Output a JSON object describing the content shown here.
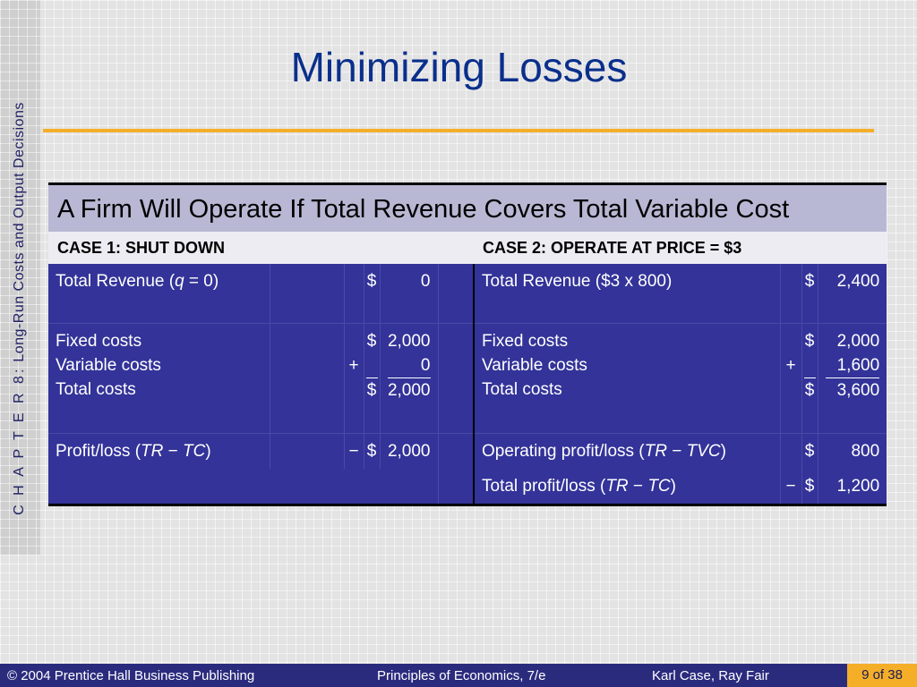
{
  "sidebar": {
    "chapter": "C H A P T E R  8:",
    "topic": "Long-Run Costs and Output Decisions"
  },
  "title": "Minimizing Losses",
  "table": {
    "header": "A Firm Will Operate If Total Revenue Covers Total Variable Cost",
    "case1": {
      "title": "CASE 1:  SHUT DOWN",
      "tr_label_pre": "Total Revenue (",
      "tr_label_var": "q",
      "tr_label_post": " = 0)",
      "tr_dollar": "$",
      "tr_value": "0",
      "fixed_label": "Fixed costs",
      "variable_label": "Variable costs",
      "total_label": "Total costs",
      "fixed_dollar": "$",
      "fixed_value": "2,000",
      "variable_sign": "+",
      "variable_value": "0",
      "total_dollar": "$",
      "total_value": "2,000",
      "profit_pre": "Profit/loss (",
      "profit_tr": "TR",
      "profit_minus": " − ",
      "profit_tc": "TC",
      "profit_post": ")",
      "profit_sign": "−",
      "profit_dollar": "$",
      "profit_value": "2,000"
    },
    "case2": {
      "title": "CASE 2:  OPERATE AT PRICE = $3",
      "tr_label": "Total Revenue ($3 x 800)",
      "tr_dollar": "$",
      "tr_value": "2,400",
      "fixed_label": "Fixed costs",
      "variable_label": "Variable costs",
      "total_label": "Total costs",
      "fixed_dollar": "$",
      "fixed_value": "2,000",
      "variable_sign": "+",
      "variable_value": "1,600",
      "total_dollar": "$",
      "total_value": "3,600",
      "op_pre": "Operating profit/loss (",
      "op_tr": "TR",
      "op_minus": " − ",
      "op_tvc": "TVC",
      "op_post": ")",
      "op_dollar": "$",
      "op_value": "800",
      "total_pre": "Total profit/loss (",
      "total_tr": "TR",
      "total_minus": " − ",
      "total_tc": "TC",
      "total_post": ")",
      "total_sign": "−",
      "total_pl_dollar": "$",
      "total_pl_value": "1,200"
    }
  },
  "footer": {
    "copyright": "© 2004 Prentice Hall Business Publishing",
    "book": "Principles of Economics, 7/e",
    "authors": "Karl Case, Ray Fair",
    "page": "9 of 38"
  },
  "colors": {
    "title": "#0a2f8c",
    "accent_rule": "#f4ae28",
    "table_body": "#333399",
    "header_band": "#b8b8d4",
    "footer_bar": "#2b2b7e"
  }
}
